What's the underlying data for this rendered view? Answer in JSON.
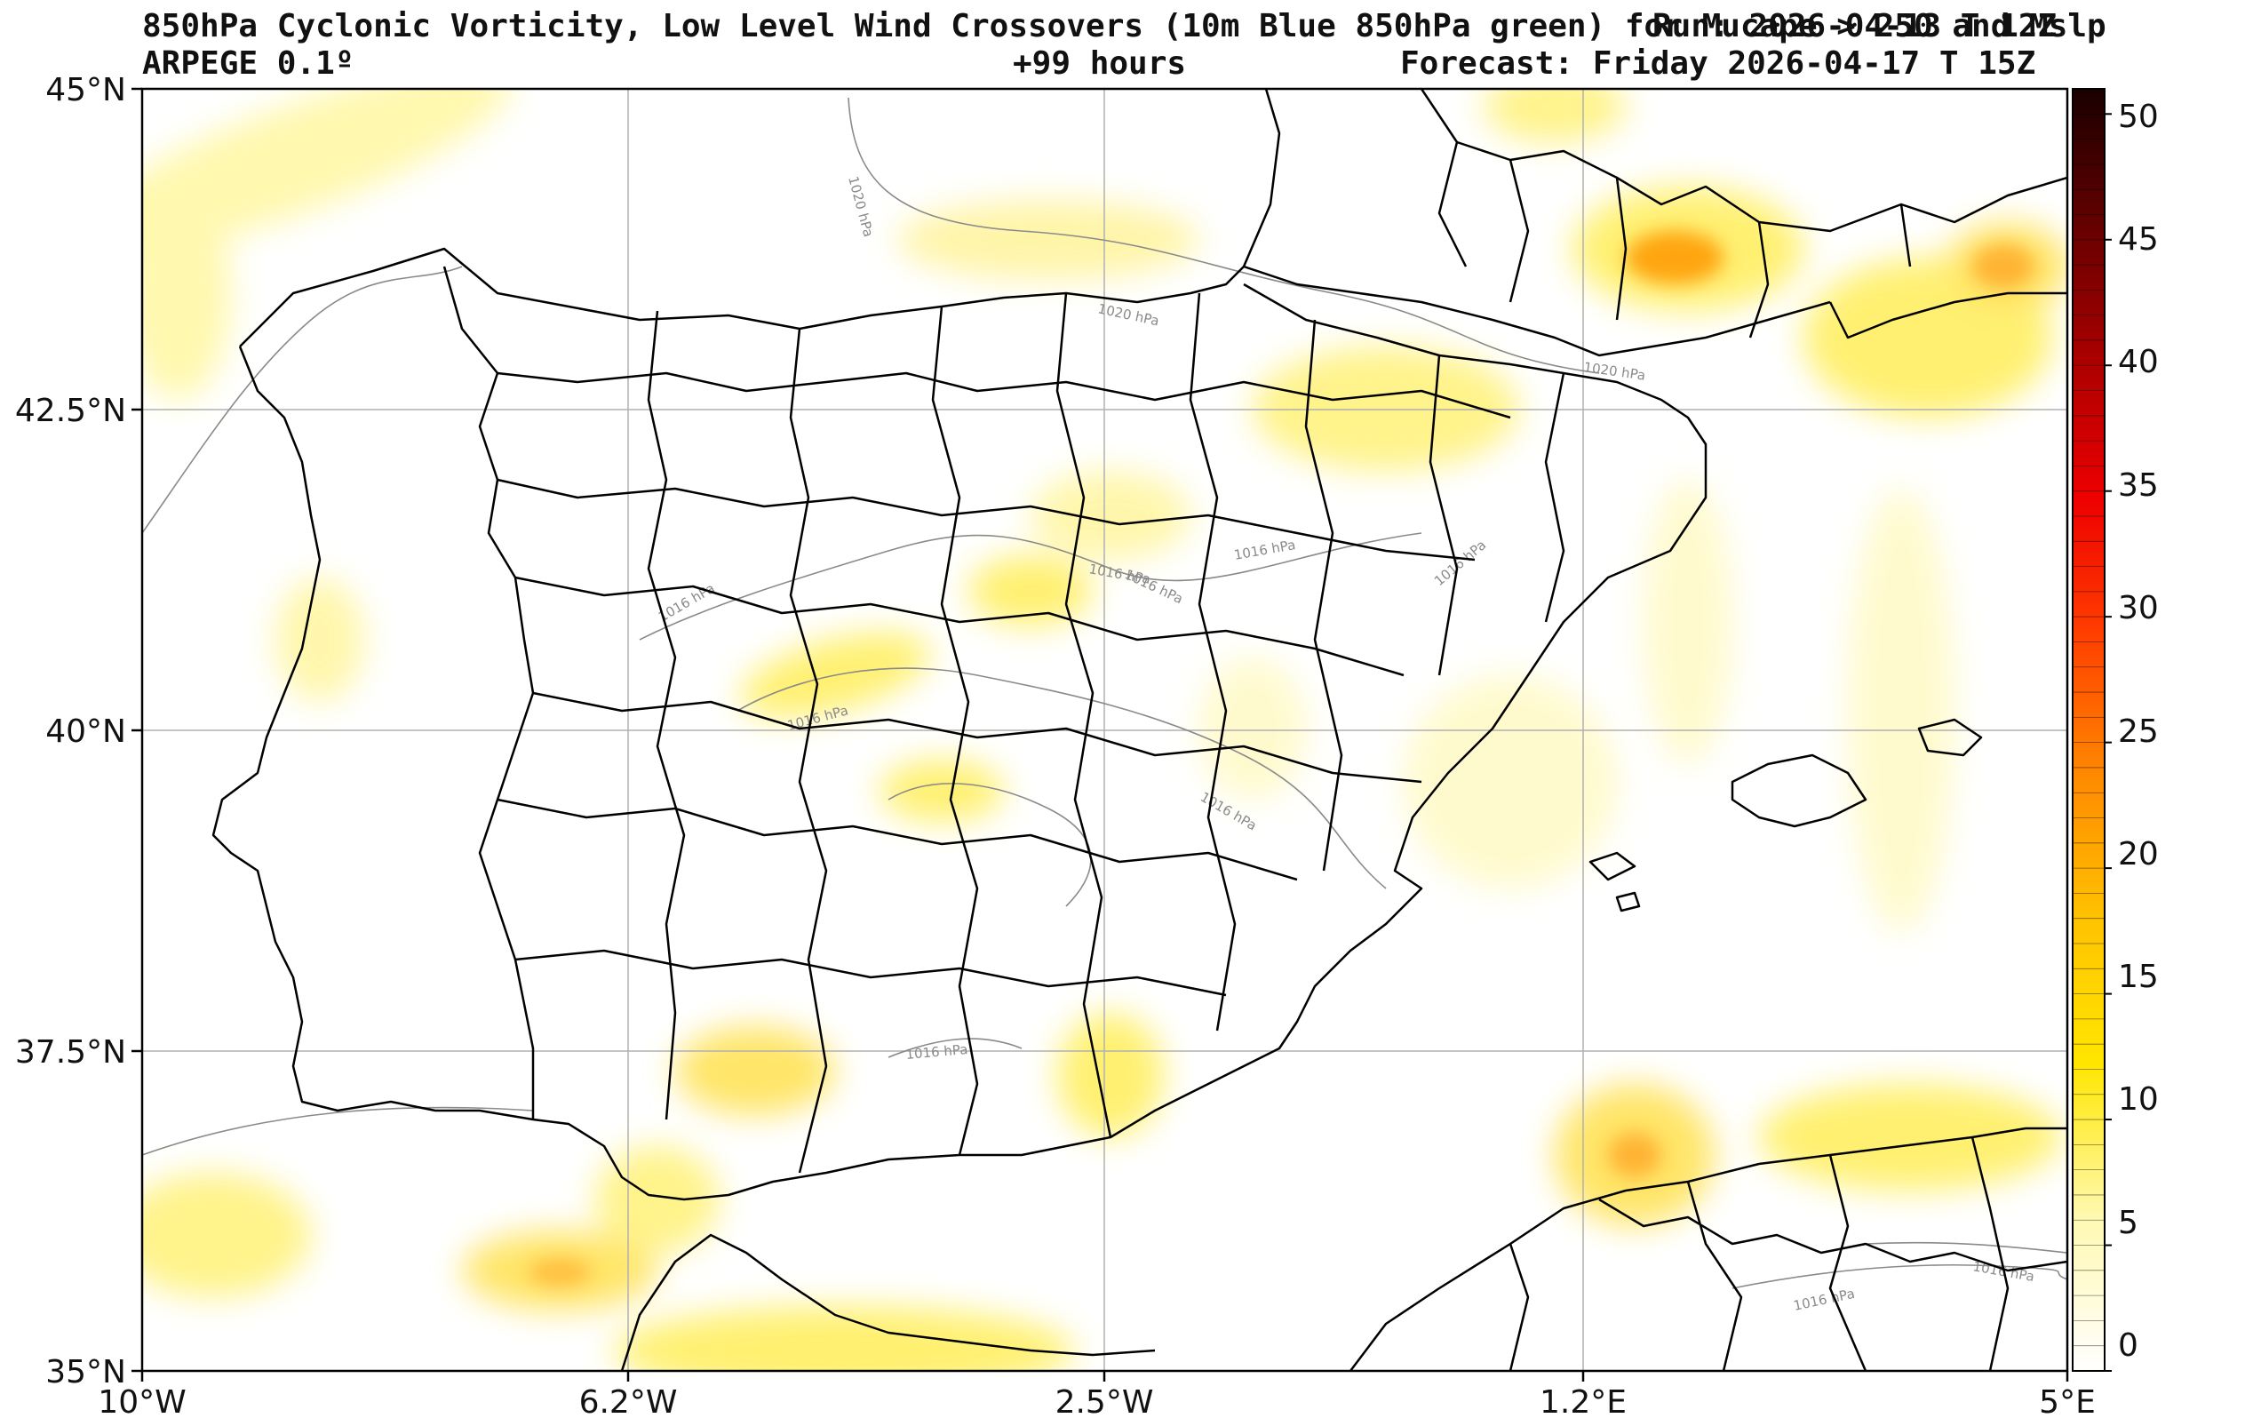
{
  "header": {
    "title_line1": "850hPa Cyclonic Vorticity, Low Level Wind Crossovers (10m Blue 850hPa green) for Mucape > 250 and Mslp",
    "run_label": "Run: 2026-04-13 T 12Z",
    "model": "ARPEGE 0.1º",
    "lead_time": "+99 hours",
    "forecast_label": "Forecast: Friday 2026-04-17 T 15Z"
  },
  "axes": {
    "lat_labels": [
      "45°N",
      "42.5°N",
      "40°N",
      "37.5°N",
      "35°N"
    ],
    "lon_labels": [
      "10°W",
      "6.2°W",
      "2.5°W",
      "1.2°E",
      "5°E"
    ]
  },
  "colorbar": {
    "labels": [
      "50",
      "45",
      "40",
      "35",
      "30",
      "25",
      "20",
      "15",
      "10",
      "5",
      "0"
    ],
    "range": [
      0,
      51
    ]
  },
  "isobar_labels": [
    "1020 hPa",
    "1020 hPa",
    "1020 hPa",
    "1016 hPa",
    "1016 hPa",
    "1016 hPa",
    "1016 hPa",
    "1016 hPa",
    "1016 hPa",
    "1016 hPa",
    "1016 hPa",
    "1016 hPa",
    "1016 hPa"
  ],
  "colors": {
    "low": "#fff7a0",
    "mid": "#ffe600",
    "high": "#e8590c",
    "border": "#000000",
    "isobar": "#8a8a8a",
    "grid": "#b0b0b0"
  }
}
